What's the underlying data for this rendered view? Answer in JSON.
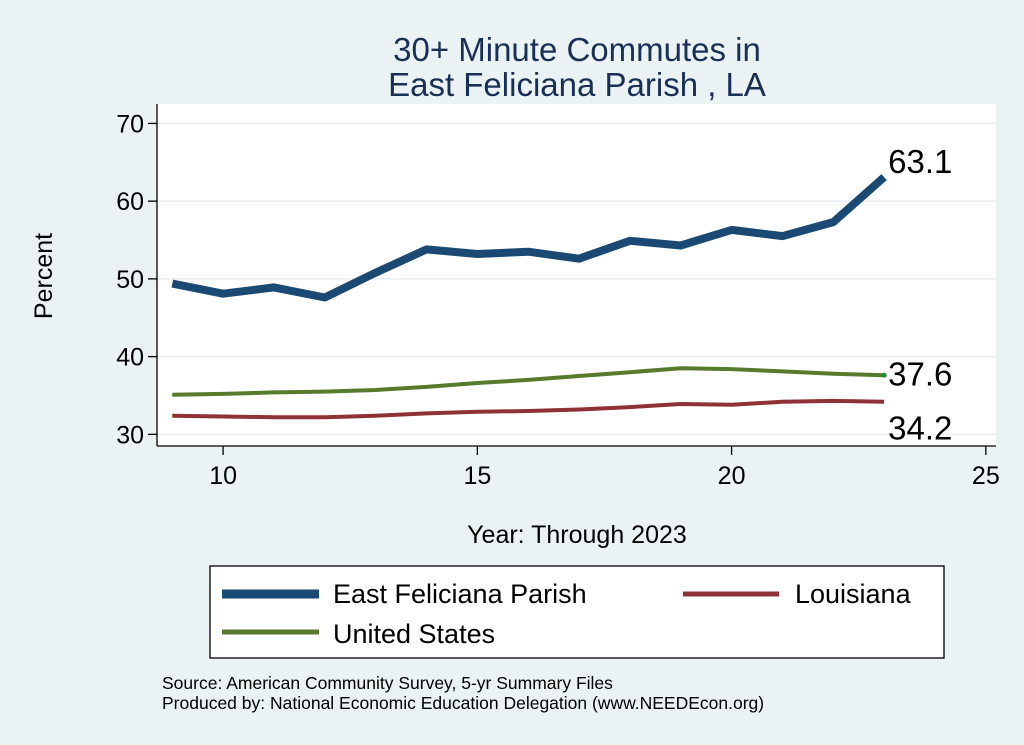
{
  "chart_data": {
    "type": "line",
    "title": [
      "30+ Minute Commutes in",
      "East Feliciana Parish , LA"
    ],
    "xlabel": "Year: Through 2023",
    "ylabel": "Percent",
    "xlim": [
      8.7,
      25.2
    ],
    "ylim": [
      28.5,
      72.5
    ],
    "xticks": [
      10,
      15,
      20,
      25
    ],
    "yticks": [
      30,
      40,
      50,
      60,
      70
    ],
    "grid": true,
    "series": [
      {
        "name": "East Feliciana Parish",
        "color": "#1a4a73",
        "x": [
          9,
          10,
          11,
          12,
          13,
          14,
          15,
          16,
          17,
          18,
          19,
          20,
          21,
          22,
          23
        ],
        "values": [
          49.4,
          48.1,
          48.9,
          47.6,
          50.8,
          53.8,
          53.2,
          53.5,
          52.6,
          54.9,
          54.3,
          56.3,
          55.5,
          57.3,
          63.1
        ],
        "end_label": "63.1"
      },
      {
        "name": "United States",
        "color": "#577a2d",
        "x": [
          9,
          10,
          11,
          12,
          13,
          14,
          15,
          16,
          17,
          18,
          19,
          20,
          21,
          22,
          23
        ],
        "values": [
          35.1,
          35.2,
          35.4,
          35.5,
          35.7,
          36.1,
          36.6,
          37.0,
          37.5,
          38.0,
          38.5,
          38.4,
          38.1,
          37.8,
          37.6
        ],
        "end_label": "37.6"
      },
      {
        "name": "Louisiana",
        "color": "#8e3236",
        "x": [
          9,
          10,
          11,
          12,
          13,
          14,
          15,
          16,
          17,
          18,
          19,
          20,
          21,
          22,
          23
        ],
        "values": [
          32.4,
          32.3,
          32.2,
          32.2,
          32.4,
          32.7,
          32.9,
          33.0,
          33.2,
          33.5,
          33.9,
          33.8,
          34.2,
          34.3,
          34.2
        ],
        "end_label": "34.2"
      }
    ],
    "legend": {
      "position": "bottom",
      "entries": [
        "East Feliciana Parish",
        "Louisiana",
        "United States"
      ]
    }
  },
  "source": {
    "line1": "Source: American Community Survey, 5-yr Summary Files",
    "line2": "Produced by: National Economic Education Delegation (www.NEEDEcon.org)"
  }
}
